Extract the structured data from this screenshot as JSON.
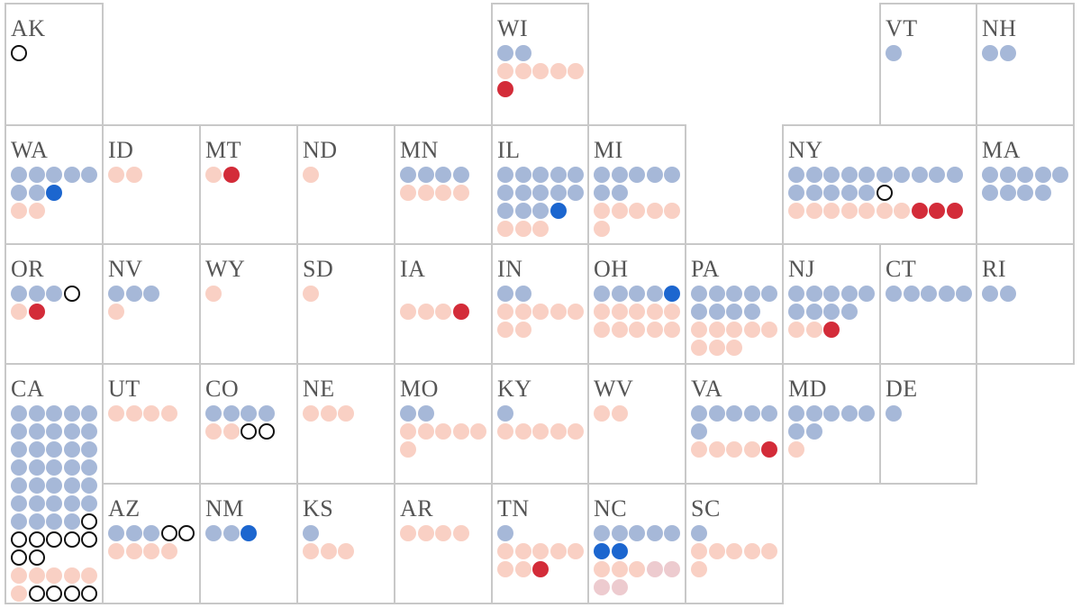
{
  "colors": {
    "dem": "#a6b8d8",
    "dem_flip": "#1c66cf",
    "rep": "#f9d0c4",
    "rep_flip": "#d32c39",
    "rep_other": "#edcbcf",
    "open": "#ffffff",
    "border": "#c8c8c8",
    "label": "#555555"
  },
  "states": [
    {
      "abbr": "AK",
      "rows": [
        [
          "open"
        ]
      ]
    },
    {
      "abbr": "WI",
      "rows": [
        [
          "dem",
          "dem"
        ],
        [
          "rep",
          "rep",
          "rep",
          "rep",
          "rep"
        ],
        [
          "rep-flip"
        ]
      ]
    },
    {
      "abbr": "VT",
      "rows": [
        [
          "dem"
        ]
      ]
    },
    {
      "abbr": "NH",
      "rows": [
        [
          "dem",
          "dem"
        ]
      ]
    },
    {
      "abbr": "WA",
      "rows": [
        [
          "dem",
          "dem",
          "dem",
          "dem",
          "dem"
        ],
        [
          "dem",
          "dem",
          "dem-flip"
        ],
        [
          "rep",
          "rep"
        ]
      ]
    },
    {
      "abbr": "ID",
      "rows": [
        [
          "rep",
          "rep"
        ]
      ]
    },
    {
      "abbr": "MT",
      "rows": [
        [
          "rep",
          "rep-flip"
        ]
      ]
    },
    {
      "abbr": "ND",
      "rows": [
        [
          "rep"
        ]
      ]
    },
    {
      "abbr": "MN",
      "rows": [
        [
          "dem",
          "dem",
          "dem",
          "dem"
        ],
        [
          "rep",
          "rep",
          "rep",
          "rep"
        ]
      ]
    },
    {
      "abbr": "IL",
      "rows": [
        [
          "dem",
          "dem",
          "dem",
          "dem",
          "dem"
        ],
        [
          "dem",
          "dem",
          "dem",
          "dem",
          "dem"
        ],
        [
          "dem",
          "dem",
          "dem",
          "dem-flip"
        ],
        [
          "rep",
          "rep",
          "rep"
        ]
      ]
    },
    {
      "abbr": "MI",
      "rows": [
        [
          "dem",
          "dem",
          "dem",
          "dem",
          "dem"
        ],
        [
          "dem",
          "dem"
        ],
        [
          "rep",
          "rep",
          "rep",
          "rep",
          "rep"
        ],
        [
          "rep"
        ]
      ]
    },
    {
      "abbr": "NY",
      "rows": [
        [
          "dem",
          "dem",
          "dem",
          "dem",
          "dem",
          "dem",
          "dem",
          "dem",
          "dem",
          "dem"
        ],
        [
          "dem",
          "dem",
          "dem",
          "dem",
          "dem",
          "open"
        ],
        [
          "rep",
          "rep",
          "rep",
          "rep",
          "rep",
          "rep",
          "rep",
          "rep-flip",
          "rep-flip",
          "rep-flip"
        ]
      ]
    },
    {
      "abbr": "MA",
      "rows": [
        [
          "dem",
          "dem",
          "dem",
          "dem",
          "dem"
        ],
        [
          "dem",
          "dem",
          "dem",
          "dem"
        ]
      ]
    },
    {
      "abbr": "OR",
      "rows": [
        [
          "dem",
          "dem",
          "dem",
          "open"
        ],
        [
          "rep",
          "rep-flip"
        ]
      ]
    },
    {
      "abbr": "NV",
      "rows": [
        [
          "dem",
          "dem",
          "dem"
        ],
        [
          "rep"
        ]
      ]
    },
    {
      "abbr": "WY",
      "rows": [
        [
          "rep"
        ]
      ]
    },
    {
      "abbr": "SD",
      "rows": [
        [
          "rep"
        ]
      ]
    },
    {
      "abbr": "IA",
      "rows": [
        [],
        [
          "rep",
          "rep",
          "rep",
          "rep-flip"
        ]
      ]
    },
    {
      "abbr": "IN",
      "rows": [
        [
          "dem",
          "dem"
        ],
        [
          "rep",
          "rep",
          "rep",
          "rep",
          "rep"
        ],
        [
          "rep",
          "rep"
        ]
      ]
    },
    {
      "abbr": "OH",
      "rows": [
        [
          "dem",
          "dem",
          "dem",
          "dem",
          "dem-flip"
        ],
        [
          "rep",
          "rep",
          "rep",
          "rep",
          "rep"
        ],
        [
          "rep",
          "rep",
          "rep",
          "rep",
          "rep"
        ]
      ]
    },
    {
      "abbr": "PA",
      "rows": [
        [
          "dem",
          "dem",
          "dem",
          "dem",
          "dem"
        ],
        [
          "dem",
          "dem",
          "dem",
          "dem"
        ],
        [
          "rep",
          "rep",
          "rep",
          "rep",
          "rep"
        ],
        [
          "rep",
          "rep",
          "rep"
        ]
      ]
    },
    {
      "abbr": "NJ",
      "rows": [
        [
          "dem",
          "dem",
          "dem",
          "dem",
          "dem"
        ],
        [
          "dem",
          "dem",
          "dem",
          "dem"
        ],
        [
          "rep",
          "rep",
          "rep-flip"
        ]
      ]
    },
    {
      "abbr": "CT",
      "rows": [
        [
          "dem",
          "dem",
          "dem",
          "dem",
          "dem"
        ]
      ]
    },
    {
      "abbr": "RI",
      "rows": [
        [
          "dem",
          "dem"
        ]
      ]
    },
    {
      "abbr": "CA",
      "rows": [
        [
          "dem",
          "dem",
          "dem",
          "dem",
          "dem"
        ],
        [
          "dem",
          "dem",
          "dem",
          "dem",
          "dem"
        ],
        [
          "dem",
          "dem",
          "dem",
          "dem",
          "dem"
        ],
        [
          "dem",
          "dem",
          "dem",
          "dem",
          "dem"
        ],
        [
          "dem",
          "dem",
          "dem",
          "dem",
          "dem"
        ],
        [
          "dem",
          "dem",
          "dem",
          "dem",
          "dem"
        ],
        [
          "dem",
          "dem",
          "dem",
          "dem",
          "open"
        ],
        [
          "open",
          "open",
          "open",
          "open",
          "open"
        ],
        [
          "open",
          "open"
        ],
        [
          "rep",
          "rep",
          "rep",
          "rep",
          "rep"
        ],
        [
          "rep",
          "open",
          "open",
          "open",
          "open"
        ]
      ]
    },
    {
      "abbr": "UT",
      "rows": [
        [
          "rep",
          "rep",
          "rep",
          "rep"
        ]
      ]
    },
    {
      "abbr": "CO",
      "rows": [
        [
          "dem",
          "dem",
          "dem",
          "dem"
        ],
        [
          "rep",
          "rep",
          "open",
          "open"
        ]
      ]
    },
    {
      "abbr": "NE",
      "rows": [
        [
          "rep",
          "rep",
          "rep"
        ]
      ]
    },
    {
      "abbr": "MO",
      "rows": [
        [
          "dem",
          "dem"
        ],
        [
          "rep",
          "rep",
          "rep",
          "rep",
          "rep"
        ],
        [
          "rep"
        ]
      ]
    },
    {
      "abbr": "KY",
      "rows": [
        [
          "dem"
        ],
        [
          "rep",
          "rep",
          "rep",
          "rep",
          "rep"
        ]
      ]
    },
    {
      "abbr": "WV",
      "rows": [
        [
          "rep",
          "rep"
        ]
      ]
    },
    {
      "abbr": "VA",
      "rows": [
        [
          "dem",
          "dem",
          "dem",
          "dem",
          "dem"
        ],
        [
          "dem"
        ],
        [
          "rep",
          "rep",
          "rep",
          "rep",
          "rep-flip"
        ]
      ]
    },
    {
      "abbr": "MD",
      "rows": [
        [
          "dem",
          "dem",
          "dem",
          "dem",
          "dem"
        ],
        [
          "dem",
          "dem"
        ],
        [
          "rep"
        ]
      ]
    },
    {
      "abbr": "DE",
      "rows": [
        [
          "dem"
        ]
      ]
    },
    {
      "abbr": "AZ",
      "rows": [
        [
          "dem",
          "dem",
          "dem",
          "open",
          "open"
        ],
        [
          "rep",
          "rep",
          "rep",
          "rep"
        ]
      ]
    },
    {
      "abbr": "NM",
      "rows": [
        [
          "dem",
          "dem",
          "dem-flip"
        ]
      ]
    },
    {
      "abbr": "KS",
      "rows": [
        [
          "dem"
        ],
        [
          "rep",
          "rep",
          "rep"
        ]
      ]
    },
    {
      "abbr": "AR",
      "rows": [
        [
          "rep",
          "rep",
          "rep",
          "rep"
        ]
      ]
    },
    {
      "abbr": "TN",
      "rows": [
        [
          "dem"
        ],
        [
          "rep",
          "rep",
          "rep",
          "rep",
          "rep"
        ],
        [
          "rep",
          "rep",
          "rep-flip"
        ]
      ]
    },
    {
      "abbr": "NC",
      "rows": [
        [
          "dem",
          "dem",
          "dem",
          "dem",
          "dem"
        ],
        [
          "dem-flip",
          "dem-flip"
        ],
        [
          "rep",
          "rep",
          "rep",
          "rep-other",
          "rep-other"
        ],
        [
          "rep-other",
          "rep-other"
        ]
      ]
    },
    {
      "abbr": "SC",
      "rows": [
        [
          "dem"
        ],
        [
          "rep",
          "rep",
          "rep",
          "rep",
          "rep"
        ],
        [
          "rep"
        ]
      ]
    }
  ]
}
